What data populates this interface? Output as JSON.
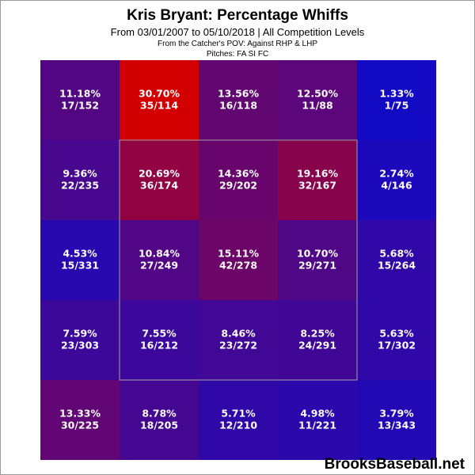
{
  "header": {
    "title": "Kris Bryant: Percentage Whiffs",
    "subtitle": "From 03/01/2007 to 05/10/2018 | All Competition Levels",
    "pov": "From the Catcher's POV:   Against RHP & LHP",
    "pitches": "Pitches:  FA  SI  FC"
  },
  "footer": {
    "brand": "BrooksBaseball.net"
  },
  "chart_data": {
    "type": "heatmap",
    "title": "Kris Bryant: Percentage Whiffs",
    "rows": 5,
    "cols": 5,
    "strike_zone": "inner 3x3 cells",
    "color_scale": {
      "low": "#0000cc",
      "high": "#cc0000"
    },
    "cells": [
      [
        {
          "pct": "11.18%",
          "frac": "17/152",
          "value": 11.18
        },
        {
          "pct": "30.70%",
          "frac": "35/114",
          "value": 30.7
        },
        {
          "pct": "13.56%",
          "frac": "16/118",
          "value": 13.56
        },
        {
          "pct": "12.50%",
          "frac": "11/88",
          "value": 12.5
        },
        {
          "pct": "1.33%",
          "frac": "1/75",
          "value": 1.33
        }
      ],
      [
        {
          "pct": "9.36%",
          "frac": "22/235",
          "value": 9.36
        },
        {
          "pct": "20.69%",
          "frac": "36/174",
          "value": 20.69
        },
        {
          "pct": "14.36%",
          "frac": "29/202",
          "value": 14.36
        },
        {
          "pct": "19.16%",
          "frac": "32/167",
          "value": 19.16
        },
        {
          "pct": "2.74%",
          "frac": "4/146",
          "value": 2.74
        }
      ],
      [
        {
          "pct": "4.53%",
          "frac": "15/331",
          "value": 4.53
        },
        {
          "pct": "10.84%",
          "frac": "27/249",
          "value": 10.84
        },
        {
          "pct": "15.11%",
          "frac": "42/278",
          "value": 15.11
        },
        {
          "pct": "10.70%",
          "frac": "29/271",
          "value": 10.7
        },
        {
          "pct": "5.68%",
          "frac": "15/264",
          "value": 5.68
        }
      ],
      [
        {
          "pct": "7.59%",
          "frac": "23/303",
          "value": 7.59
        },
        {
          "pct": "7.55%",
          "frac": "16/212",
          "value": 7.55
        },
        {
          "pct": "8.46%",
          "frac": "23/272",
          "value": 8.46
        },
        {
          "pct": "8.25%",
          "frac": "24/291",
          "value": 8.25
        },
        {
          "pct": "5.63%",
          "frac": "17/302",
          "value": 5.63
        }
      ],
      [
        {
          "pct": "13.33%",
          "frac": "30/225",
          "value": 13.33
        },
        {
          "pct": "8.78%",
          "frac": "18/205",
          "value": 8.78
        },
        {
          "pct": "5.71%",
          "frac": "12/210",
          "value": 5.71
        },
        {
          "pct": "4.98%",
          "frac": "11/221",
          "value": 4.98
        },
        {
          "pct": "3.79%",
          "frac": "13/343",
          "value": 3.79
        }
      ]
    ]
  }
}
